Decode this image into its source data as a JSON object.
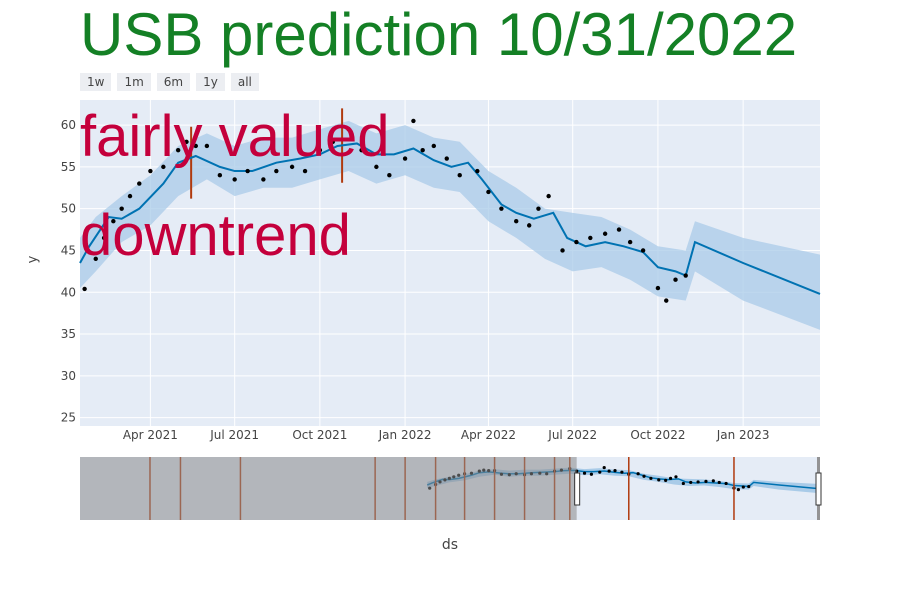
{
  "title": "USB prediction 10/31/2022",
  "colors": {
    "title": "#148025",
    "annotation": "#c4003c",
    "plot_bg": "#e5ecf6",
    "forecast_line": "#0072b2",
    "uncertainty_band": "#a9cbe8",
    "observations": "#000000",
    "changepoints": "#b03a0e",
    "slider_mask": "#8a8a8a"
  },
  "range_selector": {
    "buttons": [
      {
        "label": "1w"
      },
      {
        "label": "1m"
      },
      {
        "label": "6m"
      },
      {
        "label": "1y"
      },
      {
        "label": "all"
      }
    ]
  },
  "annotations": {
    "line1": "fairly valued",
    "line2": "downtrend"
  },
  "chart_data": {
    "type": "line",
    "xlabel": "ds",
    "ylabel": "y",
    "ylim": [
      24,
      63
    ],
    "xlim": [
      "2021-01-15",
      "2023-03-25"
    ],
    "yticks": [
      25,
      30,
      35,
      40,
      45,
      50,
      55,
      60
    ],
    "xticks": [
      {
        "date": "2021-04-01",
        "label": "Apr 2021"
      },
      {
        "date": "2021-07-01",
        "label": "Jul 2021"
      },
      {
        "date": "2021-10-01",
        "label": "Oct 2021"
      },
      {
        "date": "2022-01-01",
        "label": "Jan 2022"
      },
      {
        "date": "2022-04-01",
        "label": "Apr 2022"
      },
      {
        "date": "2022-07-01",
        "label": "Jul 2022"
      },
      {
        "date": "2022-10-01",
        "label": "Oct 2022"
      },
      {
        "date": "2023-01-01",
        "label": "Jan 2023"
      }
    ],
    "grid": true,
    "series": [
      {
        "type": "band",
        "points": [
          [
            "2021-01-15",
            40.5,
            46.5
          ],
          [
            "2021-02-01",
            42.5,
            49
          ],
          [
            "2021-03-01",
            46,
            51.5
          ],
          [
            "2021-04-01",
            48,
            54
          ],
          [
            "2021-05-01",
            51.5,
            57.5
          ],
          [
            "2021-06-01",
            53.5,
            59
          ],
          [
            "2021-07-01",
            51.5,
            57.5
          ],
          [
            "2021-08-01",
            52.5,
            58.5
          ],
          [
            "2021-09-01",
            52.5,
            58.5
          ],
          [
            "2021-10-01",
            53.5,
            59.5
          ],
          [
            "2021-11-01",
            54.5,
            60.5
          ],
          [
            "2021-12-01",
            53,
            59
          ],
          [
            "2022-01-01",
            54,
            60
          ],
          [
            "2022-02-01",
            52.5,
            58.5
          ],
          [
            "2022-03-01",
            52,
            58
          ],
          [
            "2022-04-01",
            48.5,
            54.5
          ],
          [
            "2022-05-01",
            46.5,
            52.5
          ],
          [
            "2022-06-01",
            44,
            50
          ],
          [
            "2022-07-01",
            42.5,
            49.5
          ],
          [
            "2022-08-01",
            43,
            49
          ],
          [
            "2022-09-01",
            41.5,
            47.5
          ],
          [
            "2022-10-01",
            39.5,
            45.5
          ],
          [
            "2022-10-31",
            39,
            45
          ],
          [
            "2022-11-10",
            42.5,
            48.5
          ],
          [
            "2023-01-01",
            39,
            46.5
          ],
          [
            "2023-03-25",
            35.5,
            44.5
          ]
        ]
      },
      {
        "type": "forecast",
        "points": [
          [
            "2021-01-15",
            43.5
          ],
          [
            "2021-01-25",
            45.5
          ],
          [
            "2021-02-15",
            49
          ],
          [
            "2021-03-01",
            48.8
          ],
          [
            "2021-03-20",
            50
          ],
          [
            "2021-04-15",
            53
          ],
          [
            "2021-05-01",
            55.5
          ],
          [
            "2021-05-20",
            56.3
          ],
          [
            "2021-06-15",
            55
          ],
          [
            "2021-07-01",
            54.5
          ],
          [
            "2021-07-20",
            54.5
          ],
          [
            "2021-08-15",
            55.5
          ],
          [
            "2021-09-10",
            56
          ],
          [
            "2021-10-01",
            56.5
          ],
          [
            "2021-10-20",
            57.5
          ],
          [
            "2021-11-10",
            57.8
          ],
          [
            "2021-12-01",
            56.5
          ],
          [
            "2021-12-20",
            56.5
          ],
          [
            "2022-01-10",
            57.2
          ],
          [
            "2022-02-01",
            55.8
          ],
          [
            "2022-02-20",
            55
          ],
          [
            "2022-03-10",
            55.5
          ],
          [
            "2022-03-25",
            53.5
          ],
          [
            "2022-04-15",
            50.5
          ],
          [
            "2022-05-01",
            49.5
          ],
          [
            "2022-05-20",
            48.8
          ],
          [
            "2022-06-10",
            49.5
          ],
          [
            "2022-06-25",
            46.5
          ],
          [
            "2022-07-15",
            45.5
          ],
          [
            "2022-08-05",
            46
          ],
          [
            "2022-08-25",
            45.5
          ],
          [
            "2022-09-15",
            44.8
          ],
          [
            "2022-10-01",
            43
          ],
          [
            "2022-10-20",
            42.5
          ],
          [
            "2022-10-31",
            42
          ],
          [
            "2022-11-10",
            46
          ],
          [
            "2023-01-01",
            43.5
          ],
          [
            "2023-03-25",
            39.8
          ]
        ]
      },
      {
        "type": "observed",
        "points": [
          [
            "2021-01-20",
            40.4
          ],
          [
            "2021-02-01",
            44
          ],
          [
            "2021-02-10",
            46.5
          ],
          [
            "2021-02-20",
            48.5
          ],
          [
            "2021-03-01",
            50
          ],
          [
            "2021-03-10",
            51.5
          ],
          [
            "2021-03-20",
            53
          ],
          [
            "2021-04-01",
            54.5
          ],
          [
            "2021-04-15",
            55
          ],
          [
            "2021-05-01",
            57
          ],
          [
            "2021-05-10",
            58
          ],
          [
            "2021-05-20",
            57.5
          ],
          [
            "2021-06-01",
            57.5
          ],
          [
            "2021-06-15",
            54
          ],
          [
            "2021-07-01",
            53.5
          ],
          [
            "2021-07-15",
            54.5
          ],
          [
            "2021-08-01",
            53.5
          ],
          [
            "2021-08-15",
            54.5
          ],
          [
            "2021-09-01",
            55
          ],
          [
            "2021-09-15",
            54.5
          ],
          [
            "2021-10-01",
            57
          ],
          [
            "2021-10-15",
            58
          ],
          [
            "2021-11-01",
            59.5
          ],
          [
            "2021-11-15",
            57
          ],
          [
            "2021-12-01",
            55
          ],
          [
            "2021-12-15",
            54
          ],
          [
            "2022-01-01",
            56
          ],
          [
            "2022-01-10",
            60.5
          ],
          [
            "2022-01-20",
            57
          ],
          [
            "2022-02-01",
            57.5
          ],
          [
            "2022-02-15",
            56
          ],
          [
            "2022-03-01",
            54
          ],
          [
            "2022-03-20",
            54.5
          ],
          [
            "2022-04-01",
            52
          ],
          [
            "2022-04-15",
            50
          ],
          [
            "2022-05-01",
            48.5
          ],
          [
            "2022-05-15",
            48
          ],
          [
            "2022-05-25",
            50
          ],
          [
            "2022-06-05",
            51.5
          ],
          [
            "2022-06-20",
            45
          ],
          [
            "2022-07-05",
            46
          ],
          [
            "2022-07-20",
            46.5
          ],
          [
            "2022-08-05",
            47
          ],
          [
            "2022-08-20",
            47.5
          ],
          [
            "2022-09-01",
            46
          ],
          [
            "2022-09-15",
            45
          ],
          [
            "2022-10-01",
            40.5
          ],
          [
            "2022-10-10",
            39
          ],
          [
            "2022-10-20",
            41.5
          ],
          [
            "2022-10-31",
            42
          ]
        ]
      }
    ],
    "changepoints": [
      {
        "date": "2021-05-15",
        "from": 51.2,
        "to": 59.8
      },
      {
        "date": "2021-10-25",
        "from": 53.1,
        "to": 62
      }
    ],
    "range_slider": {
      "selected_range": [
        "2021-11-15",
        "2023-03-25"
      ],
      "changepoints": [
        "2019-07-01",
        "2019-09-01",
        "2020-01-01",
        "2020-10-01",
        "2020-12-01",
        "2021-02-01",
        "2021-04-01",
        "2021-06-01",
        "2021-08-01",
        "2021-10-01",
        "2021-11-01",
        "2022-03-01",
        "2022-10-01"
      ]
    }
  }
}
